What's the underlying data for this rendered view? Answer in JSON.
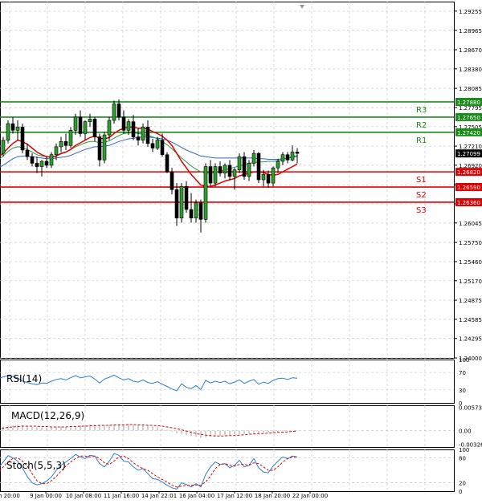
{
  "chart_data": [
    {
      "type": "candlestick",
      "panel": "main",
      "title": "",
      "x_ticks": [
        "9 Jan 00:00",
        "10 Jan 08:00",
        "11 Jan 16:00",
        "14 Jan 22:01",
        "16 Jan 04:00",
        "17 Jan 12:00",
        "18 Jan 20:00",
        "22 Jan 00:00"
      ],
      "x_tick_prefix": "h 20:00",
      "y_ticks": [
        "1.29255",
        "1.28965",
        "1.28670",
        "1.28380",
        "1.28085",
        "1.27795",
        "1.27505",
        "1.27210",
        "1.26920",
        "1.26625",
        "1.26335",
        "1.26045",
        "1.25750",
        "1.25460",
        "1.25170",
        "1.24875",
        "1.24585",
        "1.24295",
        "1.24000"
      ],
      "ylim": [
        1.24,
        1.294
      ],
      "current_price": "1.27099",
      "levels": [
        {
          "name": "R3",
          "value": 1.2788,
          "label": "1.27880",
          "color": "#1a8a1a"
        },
        {
          "name": "R2",
          "value": 1.2765,
          "label": "1.27650",
          "color": "#1a8a1a"
        },
        {
          "name": "R1",
          "value": 1.2742,
          "label": "1.27420",
          "color": "#1a8a1a"
        },
        {
          "name": "S1",
          "value": 1.2682,
          "label": "1.26820",
          "color": "#e00000"
        },
        {
          "name": "S2",
          "value": 1.2659,
          "label": "1.26590",
          "color": "#e00000"
        },
        {
          "name": "S3",
          "value": 1.2636,
          "label": "1.26360",
          "color": "#e00000"
        }
      ],
      "ohlc": [
        [
          1.27,
          1.2712,
          1.269,
          1.2705
        ],
        [
          1.2705,
          1.2715,
          1.2698,
          1.271
        ],
        [
          1.271,
          1.2735,
          1.2705,
          1.273
        ],
        [
          1.273,
          1.276,
          1.2725,
          1.2755
        ],
        [
          1.2755,
          1.2765,
          1.274,
          1.2745
        ],
        [
          1.2745,
          1.276,
          1.273,
          1.275
        ],
        [
          1.275,
          1.2755,
          1.271,
          1.2715
        ],
        [
          1.2715,
          1.2725,
          1.27,
          1.2705
        ],
        [
          1.2705,
          1.271,
          1.269,
          1.2695
        ],
        [
          1.2695,
          1.2705,
          1.268,
          1.269
        ],
        [
          1.269,
          1.27,
          1.2675,
          1.2698
        ],
        [
          1.2698,
          1.2705,
          1.2688,
          1.2692
        ],
        [
          1.2692,
          1.2712,
          1.2688,
          1.2708
        ],
        [
          1.2708,
          1.2725,
          1.27,
          1.272
        ],
        [
          1.272,
          1.2735,
          1.2712,
          1.2728
        ],
        [
          1.2728,
          1.274,
          1.2715,
          1.2722
        ],
        [
          1.2722,
          1.275,
          1.2718,
          1.2745
        ],
        [
          1.2745,
          1.277,
          1.2738,
          1.2765
        ],
        [
          1.2765,
          1.2775,
          1.2735,
          1.274
        ],
        [
          1.274,
          1.276,
          1.273,
          1.2758
        ],
        [
          1.2758,
          1.277,
          1.275,
          1.2762
        ],
        [
          1.2762,
          1.2765,
          1.2728,
          1.2735
        ],
        [
          1.2735,
          1.274,
          1.269,
          1.27
        ],
        [
          1.27,
          1.2742,
          1.2695,
          1.2738
        ],
        [
          1.2738,
          1.2765,
          1.273,
          1.276
        ],
        [
          1.276,
          1.279,
          1.2755,
          1.2785
        ],
        [
          1.2785,
          1.2792,
          1.276,
          1.2765
        ],
        [
          1.2765,
          1.2775,
          1.274,
          1.2745
        ],
        [
          1.2745,
          1.2762,
          1.2738,
          1.2758
        ],
        [
          1.2758,
          1.2768,
          1.273,
          1.2735
        ],
        [
          1.2735,
          1.2748,
          1.2722,
          1.273
        ],
        [
          1.273,
          1.2755,
          1.2725,
          1.275
        ],
        [
          1.275,
          1.276,
          1.272,
          1.2725
        ],
        [
          1.2725,
          1.2732,
          1.2712,
          1.2718
        ],
        [
          1.2718,
          1.2735,
          1.2715,
          1.273
        ],
        [
          1.273,
          1.274,
          1.2705,
          1.2708
        ],
        [
          1.2708,
          1.2712,
          1.268,
          1.2682
        ],
        [
          1.2682,
          1.2688,
          1.2648,
          1.2655
        ],
        [
          1.2655,
          1.2665,
          1.26,
          1.2612
        ],
        [
          1.2612,
          1.2665,
          1.2605,
          1.266
        ],
        [
          1.266,
          1.2668,
          1.262,
          1.2625
        ],
        [
          1.2625,
          1.265,
          1.2605,
          1.2612
        ],
        [
          1.2612,
          1.264,
          1.2605,
          1.2635
        ],
        [
          1.2635,
          1.264,
          1.259,
          1.261
        ],
        [
          1.261,
          1.2695,
          1.2605,
          1.269
        ],
        [
          1.269,
          1.27,
          1.266,
          1.2665
        ],
        [
          1.2665,
          1.2695,
          1.266,
          1.269
        ],
        [
          1.269,
          1.2698,
          1.2675,
          1.268
        ],
        [
          1.268,
          1.2695,
          1.2672,
          1.2692
        ],
        [
          1.2692,
          1.27,
          1.267,
          1.2675
        ],
        [
          1.2675,
          1.2688,
          1.2655,
          1.2685
        ],
        [
          1.2685,
          1.271,
          1.268,
          1.2705
        ],
        [
          1.2705,
          1.2712,
          1.267,
          1.2675
        ],
        [
          1.2675,
          1.27,
          1.2668,
          1.2695
        ],
        [
          1.2695,
          1.2715,
          1.269,
          1.271
        ],
        [
          1.271,
          1.2712,
          1.2665,
          1.267
        ],
        [
          1.267,
          1.2685,
          1.266,
          1.2678
        ],
        [
          1.2678,
          1.2684,
          1.2658,
          1.2665
        ],
        [
          1.2665,
          1.269,
          1.266,
          1.2688
        ],
        [
          1.2688,
          1.2702,
          1.268,
          1.2698
        ],
        [
          1.2698,
          1.2712,
          1.2692,
          1.2708
        ],
        [
          1.2708,
          1.2712,
          1.2695,
          1.27
        ],
        [
          1.27,
          1.2722,
          1.2698,
          1.2712
        ],
        [
          1.2712,
          1.2718,
          1.2695,
          1.271
        ]
      ],
      "ma_fast": [
        1.2702,
        1.2705,
        1.271,
        1.2718,
        1.2725,
        1.273,
        1.2728,
        1.2724,
        1.2718,
        1.2712,
        1.2708,
        1.2705,
        1.2704,
        1.2706,
        1.271,
        1.2712,
        1.2716,
        1.2722,
        1.2726,
        1.273,
        1.2734,
        1.2736,
        1.2733,
        1.2732,
        1.2734,
        1.274,
        1.2745,
        1.2748,
        1.275,
        1.275,
        1.2748,
        1.2748,
        1.2747,
        1.2743,
        1.274,
        1.2736,
        1.273,
        1.2722,
        1.271,
        1.2698,
        1.2688,
        1.2678,
        1.267,
        1.2662,
        1.266,
        1.266,
        1.2662,
        1.2665,
        1.2668,
        1.267,
        1.2672,
        1.2676,
        1.2678,
        1.268,
        1.2682,
        1.2682,
        1.2681,
        1.2678,
        1.2677,
        1.2678,
        1.2682,
        1.2686,
        1.269,
        1.2694
      ],
      "ma_slow": [
        1.2685,
        1.2688,
        1.2692,
        1.2697,
        1.2702,
        1.2705,
        1.2706,
        1.2706,
        1.2705,
        1.2704,
        1.2703,
        1.2702,
        1.2702,
        1.2703,
        1.2704,
        1.2705,
        1.2707,
        1.271,
        1.2713,
        1.2716,
        1.2718,
        1.272,
        1.272,
        1.2721,
        1.2722,
        1.2725,
        1.2728,
        1.273,
        1.2732,
        1.2733,
        1.2734,
        1.2735,
        1.2735,
        1.2734,
        1.2733,
        1.2732,
        1.273,
        1.2727,
        1.2723,
        1.2719,
        1.2715,
        1.2712,
        1.2709,
        1.2706,
        1.2705,
        1.2704,
        1.2703,
        1.2703,
        1.2703,
        1.2703,
        1.2703,
        1.2703,
        1.2703,
        1.2703,
        1.2703,
        1.2702,
        1.2702,
        1.2701,
        1.2701,
        1.2701,
        1.2702,
        1.2703,
        1.2704,
        1.2705
      ],
      "ma_mid": [
        1.2695,
        1.27,
        1.2706,
        1.2713,
        1.2718,
        1.272,
        1.2719,
        1.2716,
        1.2712,
        1.2708,
        1.2706,
        1.2705,
        1.2705,
        1.2706,
        1.2709,
        1.2712,
        1.2716,
        1.272,
        1.2723,
        1.2726,
        1.2728,
        1.2728,
        1.2726,
        1.2727,
        1.2729,
        1.2733,
        1.2737,
        1.274,
        1.2741,
        1.2741,
        1.274,
        1.2739,
        1.2737,
        1.2735,
        1.2732,
        1.2728,
        1.2723,
        1.2717,
        1.271,
        1.2703,
        1.2697,
        1.2691,
        1.2686,
        1.2682,
        1.268,
        1.268,
        1.2681,
        1.2683,
        1.2685,
        1.2687,
        1.2689,
        1.2691,
        1.2693,
        1.2695,
        1.2696,
        1.2697,
        1.2697,
        1.2698,
        1.2698,
        1.2699,
        1.2701,
        1.2703,
        1.2705,
        1.2707
      ]
    },
    {
      "type": "line",
      "panel": "rsi",
      "title": "RSI(14)",
      "y_ticks": [
        "100",
        "70",
        "30",
        "0"
      ],
      "ylim": [
        0,
        100
      ],
      "values": [
        52,
        56,
        60,
        63,
        61,
        58,
        50,
        47,
        44,
        42,
        46,
        45,
        50,
        54,
        56,
        53,
        58,
        63,
        58,
        60,
        62,
        55,
        46,
        55,
        59,
        64,
        58,
        53,
        56,
        50,
        48,
        53,
        47,
        45,
        49,
        43,
        38,
        32,
        28,
        44,
        36,
        33,
        40,
        31,
        52,
        46,
        50,
        47,
        50,
        44,
        48,
        53,
        45,
        50,
        54,
        43,
        48,
        45,
        52,
        56,
        57,
        54,
        58,
        57
      ]
    },
    {
      "type": "bar",
      "panel": "macd",
      "title": "MACD(12,26,9)",
      "y_ticks": [
        "0.005731",
        "0.00",
        "-0.003269"
      ],
      "ylim": [
        -0.004,
        0.0062
      ],
      "histogram": [
        0.0006,
        0.0008,
        0.001,
        0.0012,
        0.0013,
        0.0014,
        0.0013,
        0.0012,
        0.001,
        0.0009,
        0.0008,
        0.0008,
        0.0008,
        0.0009,
        0.001,
        0.001,
        0.0011,
        0.0012,
        0.0013,
        0.0014,
        0.0015,
        0.0015,
        0.0013,
        0.0013,
        0.0014,
        0.0015,
        0.0016,
        0.0016,
        0.0016,
        0.0015,
        0.0014,
        0.0013,
        0.0012,
        0.001,
        0.0008,
        0.0005,
        0.0002,
        -0.0002,
        -0.0006,
        -0.0008,
        -0.0011,
        -0.0013,
        -0.0015,
        -0.0017,
        -0.0016,
        -0.0015,
        -0.0014,
        -0.0013,
        -0.0012,
        -0.0011,
        -0.001,
        -0.0009,
        -0.0008,
        -0.0007,
        -0.0006,
        -0.0006,
        -0.0005,
        -0.0005,
        -0.0004,
        -0.0003,
        -0.0002,
        -0.0001,
        0.0,
        0.0001
      ],
      "signal": [
        0.0004,
        0.0005,
        0.0006,
        0.0008,
        0.0009,
        0.001,
        0.0011,
        0.0011,
        0.0011,
        0.0011,
        0.001,
        0.001,
        0.0009,
        0.0009,
        0.0009,
        0.0009,
        0.001,
        0.001,
        0.0011,
        0.0011,
        0.0012,
        0.0012,
        0.0013,
        0.0013,
        0.0013,
        0.0014,
        0.0014,
        0.0014,
        0.0015,
        0.0015,
        0.0014,
        0.0014,
        0.0013,
        0.0013,
        0.0012,
        0.0011,
        0.0009,
        0.0007,
        0.0005,
        0.0002,
        -0.0001,
        -0.0004,
        -0.0007,
        -0.0009,
        -0.0011,
        -0.0012,
        -0.0013,
        -0.0013,
        -0.0013,
        -0.0012,
        -0.0012,
        -0.0011,
        -0.001,
        -0.0009,
        -0.0008,
        -0.0007,
        -0.0007,
        -0.0006,
        -0.0005,
        -0.0004,
        -0.0004,
        -0.0003,
        -0.0002,
        -0.0001
      ]
    },
    {
      "type": "line",
      "panel": "stoch",
      "title": "Stoch(5,5,3)",
      "y_ticks": [
        "100",
        "80",
        "20",
        "0"
      ],
      "ylim": [
        0,
        100
      ],
      "k": [
        40,
        55,
        70,
        85,
        80,
        72,
        55,
        35,
        20,
        15,
        18,
        24,
        34,
        50,
        62,
        70,
        78,
        88,
        82,
        78,
        86,
        84,
        66,
        58,
        72,
        90,
        86,
        72,
        70,
        58,
        50,
        54,
        42,
        30,
        28,
        22,
        14,
        8,
        5,
        20,
        16,
        10,
        18,
        10,
        40,
        58,
        70,
        64,
        66,
        56,
        62,
        74,
        58,
        62,
        78,
        56,
        46,
        44,
        60,
        72,
        82,
        78,
        84,
        82
      ],
      "d": [
        35,
        45,
        58,
        70,
        78,
        80,
        72,
        60,
        42,
        25,
        18,
        18,
        25,
        35,
        48,
        60,
        70,
        78,
        84,
        84,
        82,
        84,
        78,
        68,
        64,
        72,
        82,
        84,
        78,
        68,
        60,
        54,
        50,
        42,
        34,
        28,
        22,
        14,
        10,
        12,
        14,
        14,
        15,
        14,
        22,
        36,
        54,
        64,
        66,
        62,
        60,
        64,
        64,
        62,
        68,
        66,
        58,
        50,
        50,
        58,
        70,
        78,
        82,
        82
      ]
    }
  ]
}
